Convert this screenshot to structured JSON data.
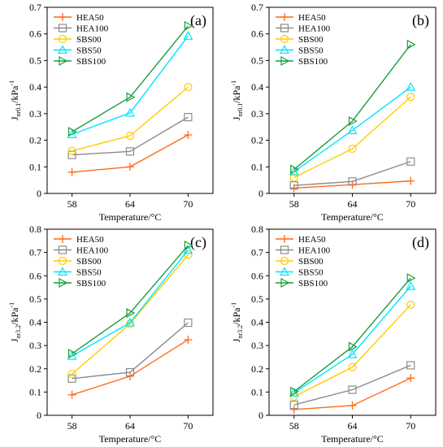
{
  "colors": {
    "HEA50": "#ff6a1a",
    "HEA100": "#8c8c8c",
    "SBS00": "#ffcc00",
    "SBS50": "#00e5ff",
    "SBS100": "#1a9e3c"
  },
  "chart_data": [
    {
      "type": "line",
      "panel_label": "(a)",
      "x": [
        58,
        64,
        70
      ],
      "xticks": [
        "58",
        "64",
        "70"
      ],
      "xlabel": "Temperature/°C",
      "ylabel_main": "J",
      "ylabel_sub": "nr0.1",
      "ylabel_unit": "/kPa",
      "ylabel_sup": "-1",
      "ylim": [
        0,
        0.7
      ],
      "yticks": [
        0,
        0.1,
        0.2,
        0.3,
        0.4,
        0.5,
        0.6,
        0.7
      ],
      "ytick_labels": [
        "0",
        "0.1",
        "0.2",
        "0.3",
        "0.4",
        "0.5",
        "0.6",
        "0.7"
      ],
      "legend": "top-left",
      "grid": false,
      "series": [
        {
          "name": "HEA50",
          "marker": "plus",
          "values": [
            0.08,
            0.1,
            0.22
          ]
        },
        {
          "name": "HEA100",
          "marker": "square",
          "values": [
            0.145,
            0.158,
            0.287
          ]
        },
        {
          "name": "SBS00",
          "marker": "circle",
          "values": [
            0.16,
            0.217,
            0.4
          ]
        },
        {
          "name": "SBS50",
          "marker": "triangle-up",
          "values": [
            0.222,
            0.303,
            0.592
          ]
        },
        {
          "name": "SBS100",
          "marker": "triangle-right",
          "values": [
            0.232,
            0.362,
            0.63
          ]
        }
      ]
    },
    {
      "type": "line",
      "panel_label": "(b)",
      "x": [
        58,
        64,
        70
      ],
      "xticks": [
        "58",
        "64",
        "70"
      ],
      "xlabel": "Temperature/°C",
      "ylabel_main": "J",
      "ylabel_sub": "nr0.1",
      "ylabel_unit": "/kPa",
      "ylabel_sup": "-1",
      "ylim": [
        0,
        0.7
      ],
      "yticks": [
        0,
        0.1,
        0.2,
        0.3,
        0.4,
        0.5,
        0.6,
        0.7
      ],
      "ytick_labels": [
        "0",
        "0.1",
        "0.2",
        "0.3",
        "0.4",
        "0.5",
        "0.6",
        "0.7"
      ],
      "legend": "top-left",
      "grid": false,
      "series": [
        {
          "name": "HEA50",
          "marker": "plus",
          "values": [
            0.02,
            0.033,
            0.047
          ]
        },
        {
          "name": "HEA100",
          "marker": "square",
          "values": [
            0.03,
            0.045,
            0.12
          ]
        },
        {
          "name": "SBS00",
          "marker": "circle",
          "values": [
            0.06,
            0.168,
            0.363
          ]
        },
        {
          "name": "SBS50",
          "marker": "triangle-up",
          "values": [
            0.082,
            0.237,
            0.4
          ]
        },
        {
          "name": "SBS100",
          "marker": "triangle-right",
          "values": [
            0.09,
            0.272,
            0.56
          ]
        }
      ]
    },
    {
      "type": "line",
      "panel_label": "(c)",
      "x": [
        58,
        64,
        70
      ],
      "xticks": [
        "58",
        "64",
        "70"
      ],
      "xlabel": "Temperature/°C",
      "ylabel_main": "J",
      "ylabel_sub": "nr3.2",
      "ylabel_unit": "/kPa",
      "ylabel_sup": "-1",
      "ylim": [
        0,
        0.8
      ],
      "yticks": [
        0,
        0.1,
        0.2,
        0.3,
        0.4,
        0.5,
        0.6,
        0.7,
        0.8
      ],
      "ytick_labels": [
        "0",
        "0.1",
        "0.2",
        "0.3",
        "0.4",
        "0.5",
        "0.6",
        "0.7",
        "0.8"
      ],
      "legend": "top-left",
      "grid": false,
      "series": [
        {
          "name": "HEA50",
          "marker": "plus",
          "values": [
            0.088,
            0.168,
            0.325
          ]
        },
        {
          "name": "HEA100",
          "marker": "square",
          "values": [
            0.158,
            0.185,
            0.398
          ]
        },
        {
          "name": "SBS00",
          "marker": "circle",
          "values": [
            0.178,
            0.393,
            0.69
          ]
        },
        {
          "name": "SBS50",
          "marker": "triangle-up",
          "values": [
            0.255,
            0.398,
            0.71
          ]
        },
        {
          "name": "SBS100",
          "marker": "triangle-right",
          "values": [
            0.265,
            0.44,
            0.73
          ]
        }
      ]
    },
    {
      "type": "line",
      "panel_label": "(d)",
      "x": [
        58,
        64,
        70
      ],
      "xticks": [
        "58",
        "64",
        "70"
      ],
      "xlabel": "Temperature/°C",
      "ylabel_main": "J",
      "ylabel_sub": "nr3.2",
      "ylabel_unit": "/kPa",
      "ylabel_sup": "-1",
      "ylim": [
        0,
        0.8
      ],
      "yticks": [
        0,
        0.1,
        0.2,
        0.3,
        0.4,
        0.5,
        0.6,
        0.7,
        0.8
      ],
      "ytick_labels": [
        "0",
        "0.1",
        "0.2",
        "0.3",
        "0.4",
        "0.5",
        "0.6",
        "0.7",
        "0.8"
      ],
      "legend": "top-left",
      "grid": false,
      "series": [
        {
          "name": "HEA50",
          "marker": "plus",
          "values": [
            0.025,
            0.042,
            0.16
          ]
        },
        {
          "name": "HEA100",
          "marker": "square",
          "values": [
            0.045,
            0.11,
            0.215
          ]
        },
        {
          "name": "SBS00",
          "marker": "circle",
          "values": [
            0.08,
            0.207,
            0.475
          ]
        },
        {
          "name": "SBS50",
          "marker": "triangle-up",
          "values": [
            0.097,
            0.262,
            0.555
          ]
        },
        {
          "name": "SBS100",
          "marker": "triangle-right",
          "values": [
            0.102,
            0.295,
            0.59
          ]
        }
      ]
    }
  ]
}
